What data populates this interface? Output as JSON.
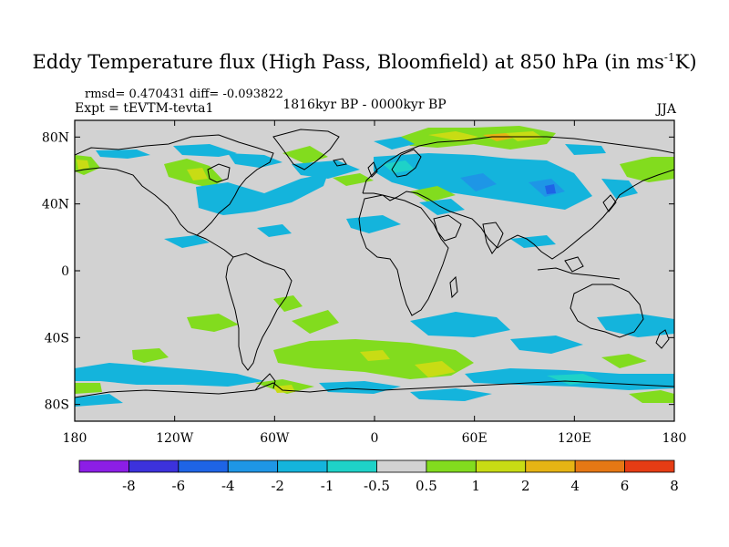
{
  "header": {
    "title": "Eddy Temperature flux (High Pass, Bloomfield) at 850 hPa (in ms",
    "title_sup": "-1",
    "title_tail": "K)",
    "stats": "rmsd= 0.470431 diff= -0.093822",
    "experiment": "Expt = tEVTM-tevta1",
    "period": "1816kyr BP - 0000kyr BP",
    "season": "JJA"
  },
  "map": {
    "projection": "cylindrical-equidistant",
    "lon_range": [
      -180,
      180
    ],
    "lat_range": [
      -90,
      90
    ],
    "background_color": "#d2d2d2",
    "coastline_color": "#000000",
    "lat_ticks": [
      {
        "value": 80,
        "label": "80N"
      },
      {
        "value": 40,
        "label": "40N"
      },
      {
        "value": 0,
        "label": "0"
      },
      {
        "value": -40,
        "label": "40S"
      },
      {
        "value": -80,
        "label": "80S"
      }
    ],
    "lon_ticks": [
      {
        "value": -180,
        "label": "180"
      },
      {
        "value": -120,
        "label": "120W"
      },
      {
        "value": -60,
        "label": "60W"
      },
      {
        "value": 0,
        "label": "0"
      },
      {
        "value": 60,
        "label": "60E"
      },
      {
        "value": 120,
        "label": "120E"
      },
      {
        "value": 180,
        "label": "180"
      }
    ]
  },
  "colorbar": {
    "levels": [
      "-8",
      "-6",
      "-4",
      "-2",
      "-1",
      "-0.5",
      "0.5",
      "1",
      "2",
      "4",
      "6",
      "8"
    ],
    "colors": [
      "#8c1ee6",
      "#3c32dc",
      "#1e64e6",
      "#1e96e6",
      "#14b4dc",
      "#1ed2c8",
      "#d2d2d2",
      "#82dc1e",
      "#c8dc14",
      "#e6b414",
      "#e67814",
      "#e63c14"
    ]
  }
}
